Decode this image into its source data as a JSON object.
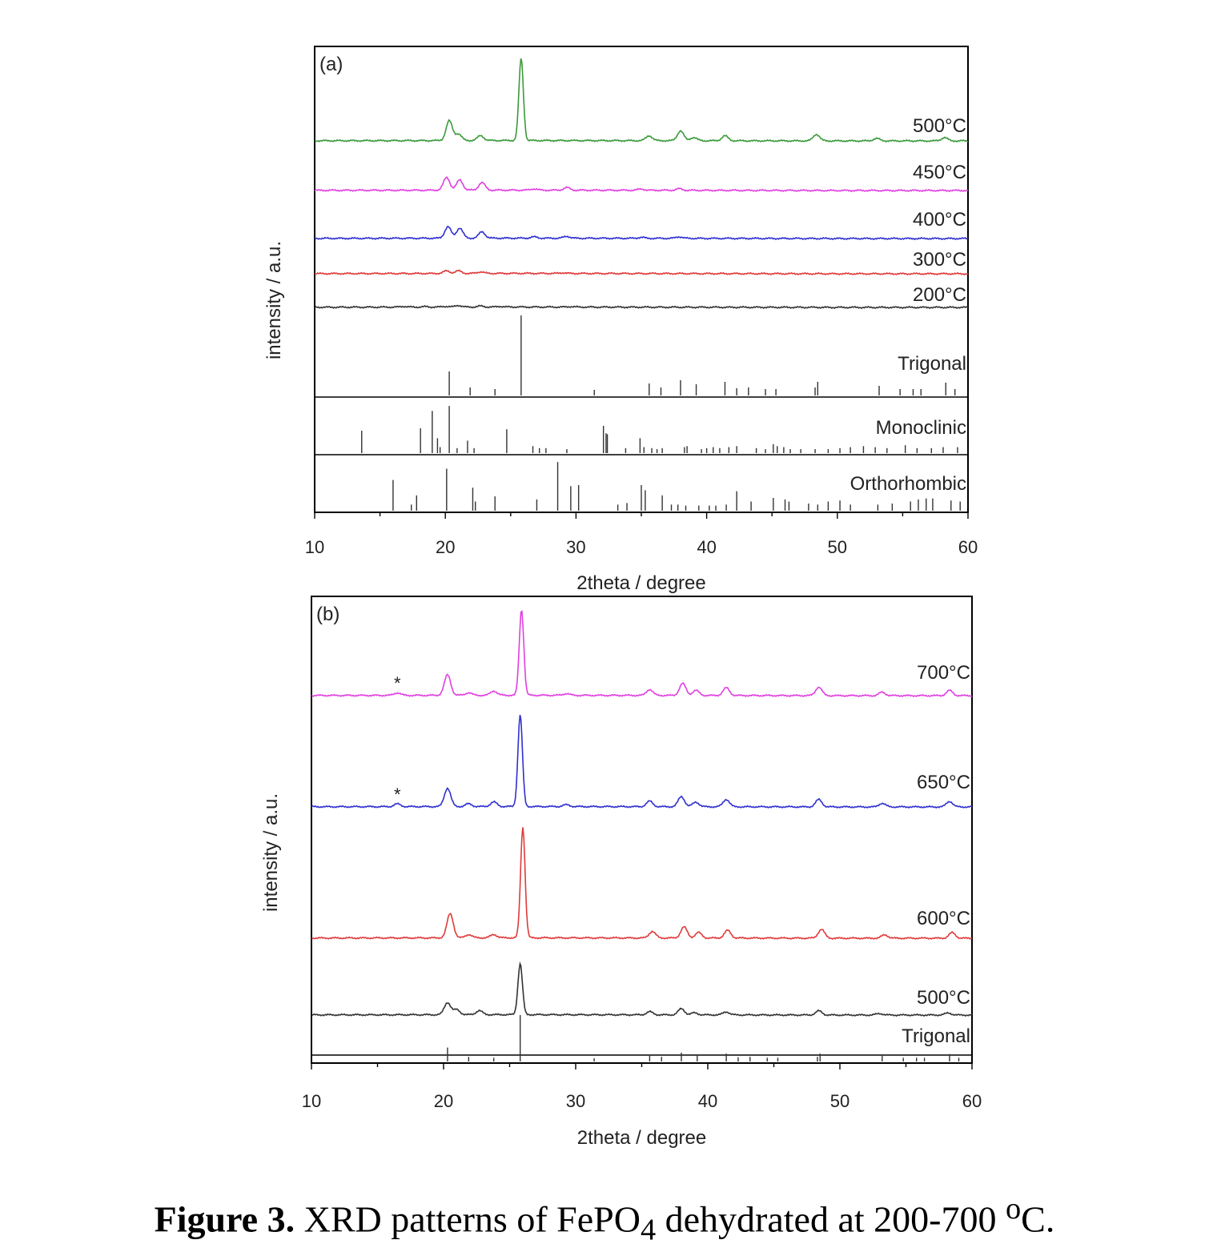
{
  "caption": {
    "label": "Figure 3.",
    "text_before_sub": "XRD patterns of FePO",
    "subscript": "4",
    "text_after_sub": "dehydrated at 200-700 ",
    "superscript": "o",
    "unit": "C."
  },
  "chart_data": [
    {
      "panel": "(a)",
      "type": "line",
      "xlabel": "2theta / degree",
      "ylabel": "intensity / a.u.",
      "xlim": [
        10,
        60
      ],
      "x_ticks": [
        10,
        20,
        30,
        40,
        50,
        60
      ],
      "series": [
        {
          "name": "500°C",
          "color": "#3a9a3a",
          "peaks": [
            [
              20.3,
              24
            ],
            [
              21.0,
              8
            ],
            [
              22.7,
              6
            ],
            [
              25.8,
              100
            ],
            [
              35.6,
              6
            ],
            [
              38.0,
              12
            ],
            [
              39.0,
              4
            ],
            [
              41.4,
              6
            ],
            [
              48.4,
              8
            ],
            [
              53.0,
              3
            ],
            [
              58.2,
              4
            ]
          ]
        },
        {
          "name": "450°C",
          "color": "#e040e0",
          "peaks": [
            [
              20.1,
              40
            ],
            [
              21.1,
              32
            ],
            [
              22.8,
              24
            ],
            [
              26.8,
              4
            ],
            [
              29.3,
              8
            ],
            [
              35.0,
              4
            ],
            [
              37.9,
              5
            ]
          ]
        },
        {
          "name": "400°C",
          "color": "#3030d0",
          "peaks": [
            [
              20.2,
              36
            ],
            [
              21.1,
              32
            ],
            [
              22.8,
              20
            ],
            [
              26.8,
              4
            ],
            [
              29.3,
              6
            ],
            [
              35.0,
              3
            ],
            [
              37.9,
              5
            ]
          ]
        },
        {
          "name": "300°C",
          "color": "#e03a3a",
          "peaks": [
            [
              20.1,
              16
            ],
            [
              21.0,
              16
            ],
            [
              22.7,
              10
            ],
            [
              29.0,
              4
            ]
          ]
        },
        {
          "name": "200°C",
          "color": "#333333",
          "peaks": [
            [
              16.8,
              6
            ],
            [
              18.5,
              4
            ],
            [
              20.0,
              6
            ],
            [
              21.0,
              14
            ],
            [
              22.7,
              8
            ],
            [
              24.2,
              5
            ],
            [
              29.6,
              4
            ]
          ]
        }
      ],
      "references": [
        {
          "name": "Trigonal",
          "lines": [
            [
              20.3,
              30
            ],
            [
              21.9,
              10
            ],
            [
              23.8,
              8
            ],
            [
              25.8,
              100
            ],
            [
              31.4,
              7
            ],
            [
              35.6,
              15
            ],
            [
              36.5,
              10
            ],
            [
              38.0,
              19
            ],
            [
              39.2,
              14
            ],
            [
              41.4,
              17
            ],
            [
              42.3,
              9
            ],
            [
              43.2,
              10
            ],
            [
              44.5,
              8
            ],
            [
              45.3,
              8
            ],
            [
              48.3,
              10
            ],
            [
              48.5,
              17
            ],
            [
              53.2,
              12
            ],
            [
              54.8,
              8
            ],
            [
              55.8,
              8
            ],
            [
              56.4,
              8
            ],
            [
              58.3,
              16
            ],
            [
              59.0,
              8
            ]
          ]
        },
        {
          "name": "Monoclinic",
          "lines": [
            [
              13.6,
              45
            ],
            [
              18.1,
              50
            ],
            [
              19.0,
              85
            ],
            [
              19.4,
              30
            ],
            [
              19.6,
              12
            ],
            [
              20.3,
              95
            ],
            [
              20.9,
              10
            ],
            [
              21.7,
              25
            ],
            [
              22.2,
              10
            ],
            [
              24.7,
              48
            ],
            [
              26.7,
              14
            ],
            [
              27.2,
              10
            ],
            [
              27.7,
              10
            ],
            [
              29.3,
              8
            ],
            [
              32.1,
              55
            ],
            [
              32.3,
              40
            ],
            [
              32.4,
              38
            ],
            [
              33.8,
              10
            ],
            [
              34.9,
              30
            ],
            [
              35.2,
              12
            ],
            [
              35.8,
              10
            ],
            [
              36.2,
              8
            ],
            [
              36.6,
              10
            ],
            [
              38.3,
              12
            ],
            [
              38.5,
              14
            ],
            [
              39.6,
              8
            ],
            [
              40.0,
              10
            ],
            [
              40.5,
              12
            ],
            [
              41.0,
              10
            ],
            [
              41.7,
              12
            ],
            [
              42.3,
              14
            ],
            [
              43.8,
              10
            ],
            [
              44.5,
              8
            ],
            [
              45.1,
              18
            ],
            [
              45.4,
              14
            ],
            [
              45.9,
              12
            ],
            [
              46.4,
              8
            ],
            [
              47.2,
              8
            ],
            [
              48.3,
              8
            ],
            [
              49.3,
              8
            ],
            [
              50.2,
              10
            ],
            [
              51.0,
              12
            ],
            [
              52.0,
              14
            ],
            [
              52.9,
              12
            ],
            [
              53.8,
              10
            ],
            [
              55.2,
              16
            ],
            [
              56.1,
              10
            ],
            [
              57.2,
              10
            ],
            [
              58.1,
              12
            ],
            [
              59.2,
              12
            ]
          ]
        },
        {
          "name": "Orthorhombic",
          "lines": [
            [
              16.0,
              60
            ],
            [
              17.4,
              12
            ],
            [
              17.8,
              30
            ],
            [
              20.1,
              82
            ],
            [
              22.1,
              45
            ],
            [
              22.3,
              18
            ],
            [
              23.8,
              28
            ],
            [
              27.0,
              22
            ],
            [
              28.6,
              95
            ],
            [
              29.6,
              48
            ],
            [
              30.2,
              50
            ],
            [
              33.2,
              12
            ],
            [
              33.9,
              15
            ],
            [
              35.0,
              50
            ],
            [
              35.3,
              40
            ],
            [
              36.6,
              30
            ],
            [
              37.3,
              12
            ],
            [
              37.8,
              12
            ],
            [
              38.4,
              10
            ],
            [
              39.4,
              10
            ],
            [
              40.2,
              10
            ],
            [
              40.7,
              10
            ],
            [
              41.5,
              12
            ],
            [
              42.3,
              38
            ],
            [
              43.4,
              18
            ],
            [
              45.1,
              25
            ],
            [
              46.0,
              22
            ],
            [
              46.3,
              18
            ],
            [
              47.8,
              14
            ],
            [
              48.5,
              12
            ],
            [
              49.3,
              18
            ],
            [
              50.2,
              20
            ],
            [
              51.0,
              12
            ],
            [
              53.1,
              12
            ],
            [
              54.2,
              14
            ],
            [
              55.6,
              18
            ],
            [
              56.2,
              22
            ],
            [
              56.8,
              24
            ],
            [
              57.3,
              24
            ],
            [
              58.7,
              20
            ],
            [
              59.4,
              18
            ]
          ]
        }
      ]
    },
    {
      "panel": "(b)",
      "type": "line",
      "xlabel": "2theta / degree",
      "ylabel": "intensity / a.u.",
      "xlim": [
        10,
        60
      ],
      "x_ticks": [
        10,
        20,
        30,
        40,
        50,
        60
      ],
      "annotation": "*",
      "annotation_x": 16.5,
      "series": [
        {
          "name": "700°C",
          "color": "#e040e0",
          "star": true,
          "peaks": [
            [
              16.5,
              3
            ],
            [
              20.3,
              24
            ],
            [
              21.9,
              3
            ],
            [
              23.8,
              5
            ],
            [
              25.9,
              100
            ],
            [
              29.3,
              2
            ],
            [
              35.6,
              7
            ],
            [
              38.1,
              14
            ],
            [
              39.1,
              6
            ],
            [
              41.4,
              9
            ],
            [
              48.4,
              10
            ],
            [
              53.2,
              4
            ],
            [
              58.3,
              6
            ]
          ]
        },
        {
          "name": "650°C",
          "color": "#3030d0",
          "star": true,
          "peaks": [
            [
              16.5,
              3
            ],
            [
              20.3,
              20
            ],
            [
              21.9,
              3
            ],
            [
              23.8,
              5
            ],
            [
              25.8,
              100
            ],
            [
              29.3,
              2
            ],
            [
              35.6,
              6
            ],
            [
              38.0,
              11
            ],
            [
              39.1,
              5
            ],
            [
              41.4,
              8
            ],
            [
              48.4,
              8
            ],
            [
              53.2,
              4
            ],
            [
              58.3,
              6
            ]
          ]
        },
        {
          "name": "600°C",
          "color": "#e03a3a",
          "star": false,
          "peaks": [
            [
              20.5,
              22
            ],
            [
              21.9,
              3
            ],
            [
              23.8,
              3
            ],
            [
              26.0,
              100
            ],
            [
              35.8,
              6
            ],
            [
              38.2,
              10
            ],
            [
              39.3,
              5
            ],
            [
              41.5,
              7
            ],
            [
              48.6,
              8
            ],
            [
              53.4,
              3
            ],
            [
              58.5,
              5
            ]
          ]
        },
        {
          "name": "500°C",
          "color": "#333333",
          "star": false,
          "peaks": [
            [
              20.3,
              24
            ],
            [
              21.0,
              10
            ],
            [
              22.7,
              8
            ],
            [
              25.8,
              100
            ],
            [
              35.6,
              6
            ],
            [
              38.0,
              12
            ],
            [
              39.0,
              4
            ],
            [
              41.4,
              6
            ],
            [
              48.4,
              8
            ],
            [
              53.0,
              3
            ],
            [
              58.2,
              4
            ]
          ]
        }
      ],
      "references": [
        {
          "name": "Trigonal",
          "lines": [
            [
              20.3,
              30
            ],
            [
              21.9,
              10
            ],
            [
              23.8,
              8
            ],
            [
              25.8,
              100
            ],
            [
              31.4,
              7
            ],
            [
              35.6,
              15
            ],
            [
              36.5,
              10
            ],
            [
              38.0,
              19
            ],
            [
              39.2,
              14
            ],
            [
              41.4,
              17
            ],
            [
              42.3,
              9
            ],
            [
              43.2,
              10
            ],
            [
              44.5,
              8
            ],
            [
              45.3,
              8
            ],
            [
              48.3,
              10
            ],
            [
              48.5,
              17
            ],
            [
              53.2,
              12
            ],
            [
              54.8,
              8
            ],
            [
              55.8,
              8
            ],
            [
              56.4,
              8
            ],
            [
              58.3,
              16
            ],
            [
              59.0,
              8
            ]
          ]
        }
      ]
    }
  ]
}
